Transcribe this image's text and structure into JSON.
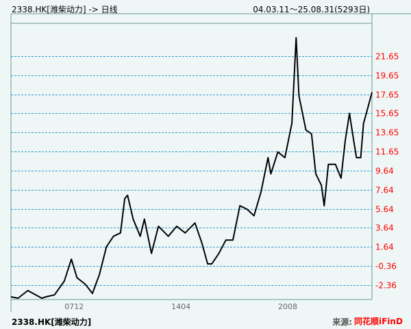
{
  "header": {
    "title": "2338.HK[潍柴动力] -> 日线",
    "date_range": "04.03.11～25.08.31(5293日)"
  },
  "footer": {
    "symbol": "2338.HK[潍柴动力]",
    "source_label": "来源:",
    "brand": "同花顺iFinD"
  },
  "colors": {
    "background": "#eef7f6",
    "border": "#6a9a9a",
    "grid": "#3399cc",
    "price_line": "#000000",
    "y_tick_labels": "#ff0000",
    "x_tick_labels": "#666666"
  },
  "chart_data": {
    "type": "line",
    "title": "",
    "xlabel": "",
    "ylabel": "",
    "x_range": [
      "2004-03",
      "2025-08"
    ],
    "ylim": [
      -3.9,
      23.8
    ],
    "grid": "horizontal dashed",
    "x_ticks": [
      {
        "label": "0712",
        "date": "2007-12"
      },
      {
        "label": "1404",
        "date": "2014-04"
      },
      {
        "label": "2008",
        "date": "2020-08"
      }
    ],
    "y_ticks": [
      21.65,
      19.65,
      17.65,
      15.65,
      13.65,
      11.65,
      9.64,
      7.64,
      5.64,
      3.64,
      1.64,
      -0.36,
      -2.36
    ],
    "y_tick_labels": [
      "21.65",
      "19.65",
      "17.65",
      "15.65",
      "13.65",
      "11.65",
      "9.64",
      "7.64",
      "5.64",
      "3.64",
      "1.64",
      "-0.36",
      "-2.36"
    ],
    "series": [
      {
        "points": [
          [
            "2004-03",
            -3.6
          ],
          [
            "2004-08",
            -3.75
          ],
          [
            "2005-03",
            -2.95
          ],
          [
            "2006-01",
            -3.75
          ],
          [
            "2006-04",
            -3.6
          ],
          [
            "2006-10",
            -3.4
          ],
          [
            "2007-05",
            -1.95
          ],
          [
            "2007-10",
            0.35
          ],
          [
            "2008-02",
            -1.6
          ],
          [
            "2008-08",
            -2.3
          ],
          [
            "2009-01",
            -3.25
          ],
          [
            "2009-06",
            -1.25
          ],
          [
            "2009-11",
            1.65
          ],
          [
            "2010-04",
            2.75
          ],
          [
            "2010-09",
            3.1
          ],
          [
            "2010-12",
            6.7
          ],
          [
            "2011-02",
            7.05
          ],
          [
            "2011-06",
            4.55
          ],
          [
            "2011-11",
            2.75
          ],
          [
            "2012-02",
            4.55
          ],
          [
            "2012-07",
            0.95
          ],
          [
            "2012-12",
            3.8
          ],
          [
            "2013-07",
            2.75
          ],
          [
            "2014-01",
            3.8
          ],
          [
            "2014-07",
            3.1
          ],
          [
            "2015-02",
            4.15
          ],
          [
            "2015-07",
            2.0
          ],
          [
            "2015-11",
            -0.15
          ],
          [
            "2016-02",
            -0.15
          ],
          [
            "2016-07",
            0.95
          ],
          [
            "2016-12",
            2.35
          ],
          [
            "2017-05",
            2.35
          ],
          [
            "2017-10",
            5.95
          ],
          [
            "2018-03",
            5.6
          ],
          [
            "2018-08",
            4.9
          ],
          [
            "2019-01",
            7.4
          ],
          [
            "2019-06",
            11.0
          ],
          [
            "2019-08",
            9.3
          ],
          [
            "2020-01",
            11.6
          ],
          [
            "2020-06",
            11.0
          ],
          [
            "2020-11",
            14.6
          ],
          [
            "2021-02",
            23.6
          ],
          [
            "2021-04",
            17.5
          ],
          [
            "2021-09",
            13.9
          ],
          [
            "2022-01",
            13.5
          ],
          [
            "2022-04",
            9.3
          ],
          [
            "2022-08",
            8.1
          ],
          [
            "2022-10",
            5.95
          ],
          [
            "2023-01",
            10.3
          ],
          [
            "2023-06",
            10.3
          ],
          [
            "2023-10",
            8.85
          ],
          [
            "2024-01",
            12.8
          ],
          [
            "2024-04",
            15.65
          ],
          [
            "2024-07",
            12.8
          ],
          [
            "2024-09",
            11.0
          ],
          [
            "2024-12",
            11.0
          ],
          [
            "2025-02",
            14.6
          ],
          [
            "2025-04",
            15.65
          ],
          [
            "2025-08",
            17.85
          ]
        ]
      }
    ]
  }
}
